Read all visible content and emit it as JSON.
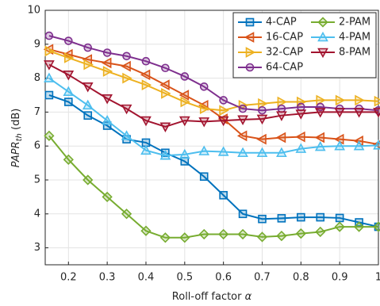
{
  "chart_data": {
    "type": "line",
    "xlabel": {
      "main": "Roll-off factor ",
      "symbol": "α"
    },
    "ylabel": {
      "main": "PAPR",
      "sub": "th",
      "unit": " (dB)"
    },
    "x": [
      0.15,
      0.2,
      0.25,
      0.3,
      0.35,
      0.4,
      0.45,
      0.5,
      0.55,
      0.6,
      0.65,
      0.7,
      0.75,
      0.8,
      0.85,
      0.9,
      0.95,
      1
    ],
    "xlim": [
      0.14,
      1
    ],
    "xticks": [
      0.2,
      0.3,
      0.4,
      0.5,
      0.6,
      0.7,
      0.8,
      0.9,
      1
    ],
    "ylim": [
      2.5,
      10
    ],
    "yticks": [
      3,
      4,
      5,
      6,
      7,
      8,
      9,
      10
    ],
    "grid": true,
    "legend": "top-right",
    "series": [
      {
        "name": "4-CAP",
        "color": "#0072BD",
        "marker": "square",
        "values": [
          7.5,
          7.3,
          6.9,
          6.6,
          6.2,
          6.1,
          5.8,
          5.55,
          5.1,
          4.55,
          4.0,
          3.85,
          3.87,
          3.9,
          3.9,
          3.88,
          3.75,
          3.62
        ]
      },
      {
        "name": "16-CAP",
        "color": "#D95319",
        "marker": "triangle-left",
        "values": [
          8.85,
          8.7,
          8.55,
          8.45,
          8.35,
          8.1,
          7.8,
          7.5,
          7.2,
          6.8,
          6.3,
          6.2,
          6.25,
          6.27,
          6.25,
          6.2,
          6.15,
          6.05
        ]
      },
      {
        "name": "32-CAP",
        "color": "#EDB120",
        "marker": "triangle-right",
        "values": [
          8.8,
          8.6,
          8.4,
          8.2,
          8.0,
          7.8,
          7.55,
          7.3,
          7.1,
          7.05,
          7.2,
          7.25,
          7.3,
          7.3,
          7.35,
          7.35,
          7.35,
          7.32
        ]
      },
      {
        "name": "64-CAP",
        "color": "#7E2F8E",
        "marker": "circle",
        "values": [
          9.25,
          9.1,
          8.9,
          8.75,
          8.65,
          8.5,
          8.3,
          8.05,
          7.75,
          7.35,
          7.1,
          7.05,
          7.1,
          7.15,
          7.15,
          7.1,
          7.1,
          7.05
        ]
      },
      {
        "name": "2-PAM",
        "color": "#77AC30",
        "marker": "diamond",
        "values": [
          6.3,
          5.6,
          5.0,
          4.5,
          4.0,
          3.5,
          3.3,
          3.3,
          3.4,
          3.4,
          3.4,
          3.32,
          3.35,
          3.42,
          3.47,
          3.62,
          3.62,
          3.62
        ]
      },
      {
        "name": "4-PAM",
        "color": "#4DBEEE",
        "marker": "triangle-up",
        "values": [
          8.0,
          7.6,
          7.2,
          6.75,
          6.3,
          5.87,
          5.72,
          5.75,
          5.85,
          5.83,
          5.8,
          5.8,
          5.8,
          5.92,
          5.98,
          6.0,
          6.0,
          6.02
        ]
      },
      {
        "name": "8-PAM",
        "color": "#A2142F",
        "marker": "triangle-down",
        "values": [
          8.4,
          8.1,
          7.75,
          7.4,
          7.1,
          6.75,
          6.57,
          6.75,
          6.72,
          6.75,
          6.78,
          6.8,
          6.9,
          6.95,
          7.0,
          7.0,
          7.0,
          7.0
        ]
      }
    ]
  }
}
